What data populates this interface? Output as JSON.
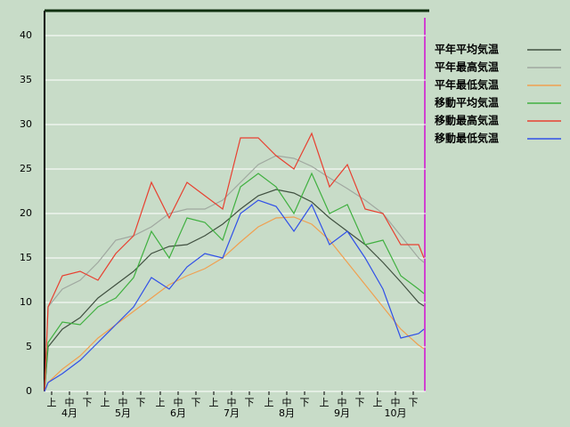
{
  "chart_data": {
    "type": "line",
    "x": [
      0,
      2,
      10,
      20,
      30,
      40,
      50,
      60,
      70,
      80,
      90,
      100,
      110,
      120,
      130,
      140,
      150,
      160,
      170,
      180,
      190,
      200,
      210,
      213
    ],
    "series": [
      {
        "name": "平年平均気温",
        "color": "#405040",
        "values": [
          0,
          5,
          7,
          8.3,
          10.5,
          12,
          13.5,
          15.5,
          16.3,
          16.5,
          17.5,
          18.8,
          20.5,
          22,
          22.7,
          22.3,
          21.3,
          19.5,
          18,
          16.5,
          14.5,
          12.3,
          10,
          9.6
        ]
      },
      {
        "name": "平年最高気温",
        "color": "#a0a8a0",
        "values": [
          0,
          9.5,
          11.5,
          12.5,
          14.5,
          17,
          17.5,
          18.5,
          20,
          20.5,
          20.5,
          21.5,
          23.5,
          25.5,
          26.5,
          26.2,
          25.3,
          24,
          22.8,
          21.5,
          20,
          17.5,
          15,
          14.5
        ]
      },
      {
        "name": "平年最低気温",
        "color": "#f0a050",
        "values": [
          0,
          1,
          2.5,
          4,
          6,
          7.5,
          9,
          10.5,
          12,
          13,
          13.8,
          15,
          16.8,
          18.5,
          19.5,
          19.6,
          18.8,
          17,
          14.5,
          12,
          9.5,
          7,
          5.2,
          4.8
        ]
      },
      {
        "name": "移動平均気温",
        "color": "#40b040",
        "values": [
          0,
          5.5,
          7.8,
          7.5,
          9.5,
          10.5,
          12.8,
          18,
          15,
          19.5,
          19,
          17,
          23,
          24.5,
          23,
          20,
          24.5,
          20,
          21,
          16.5,
          17,
          13,
          11.5,
          11
        ]
      },
      {
        "name": "移動最高気温",
        "color": "#e84030",
        "values": [
          0,
          9.5,
          13,
          13.5,
          12.5,
          15.5,
          17.5,
          23.5,
          19.5,
          23.5,
          22,
          20.5,
          28.5,
          28.5,
          26.5,
          25,
          29,
          23,
          25.5,
          20.5,
          20,
          16.5,
          16.5,
          15
        ]
      },
      {
        "name": "移動最低気温",
        "color": "#3050e8",
        "values": [
          0,
          1,
          2,
          3.5,
          5.5,
          7.5,
          9.5,
          12.8,
          11.5,
          14,
          15.5,
          15,
          20,
          21.5,
          20.8,
          18,
          21,
          16.5,
          18,
          15,
          11.5,
          6,
          6.5,
          7
        ]
      }
    ],
    "xlim": [
      0,
      214
    ],
    "xticks": [
      {
        "value": 4,
        "label": "上"
      },
      {
        "value": 14,
        "label": "中"
      },
      {
        "value": 24,
        "label": "下"
      },
      {
        "value": 34,
        "label": "上"
      },
      {
        "value": 44,
        "label": "中"
      },
      {
        "value": 54,
        "label": "下"
      },
      {
        "value": 65,
        "label": "上"
      },
      {
        "value": 75,
        "label": "中"
      },
      {
        "value": 85,
        "label": "下"
      },
      {
        "value": 95,
        "label": "上"
      },
      {
        "value": 105,
        "label": "中"
      },
      {
        "value": 115,
        "label": "下"
      },
      {
        "value": 126,
        "label": "上"
      },
      {
        "value": 136,
        "label": "中"
      },
      {
        "value": 146,
        "label": "下"
      },
      {
        "value": 157,
        "label": "上"
      },
      {
        "value": 167,
        "label": "中"
      },
      {
        "value": 177,
        "label": "下"
      },
      {
        "value": 187,
        "label": "上"
      },
      {
        "value": 197,
        "label": "中"
      },
      {
        "value": 207,
        "label": "下"
      }
    ],
    "month_labels": [
      {
        "value": 14,
        "label": "4月"
      },
      {
        "value": 44,
        "label": "5月"
      },
      {
        "value": 75,
        "label": "6月"
      },
      {
        "value": 105,
        "label": "7月"
      },
      {
        "value": 136,
        "label": "8月"
      },
      {
        "value": 167,
        "label": "9月"
      },
      {
        "value": 197,
        "label": "10月"
      }
    ],
    "ylim": [
      0,
      42.8
    ],
    "yticks": [
      0,
      5,
      10,
      15,
      20,
      25,
      30,
      35,
      40
    ],
    "grid": true,
    "legend": "right"
  }
}
